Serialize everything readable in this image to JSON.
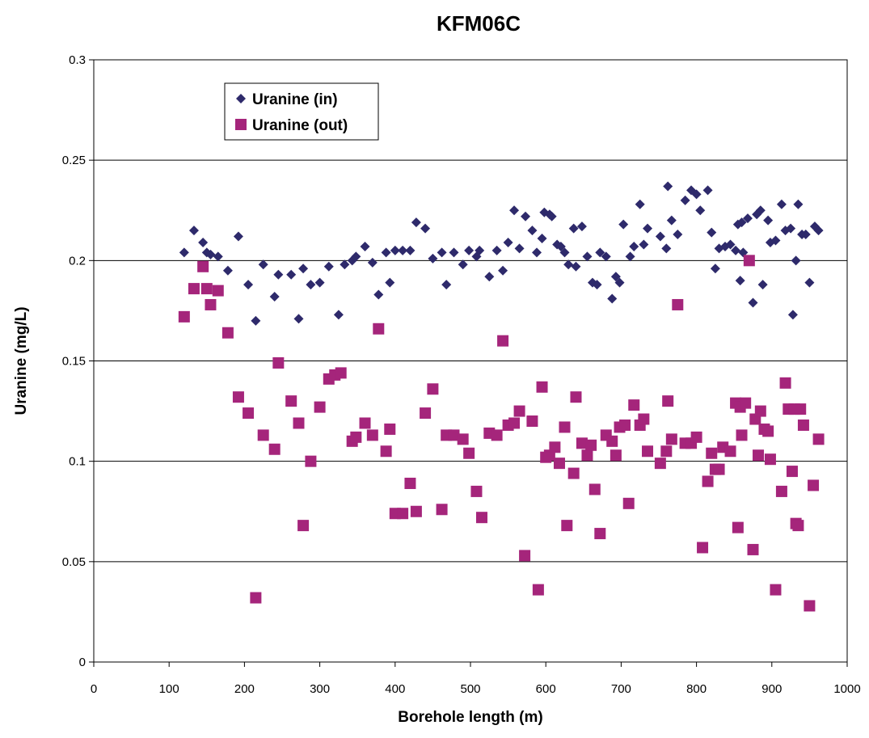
{
  "chart_data": {
    "type": "scatter",
    "title": "KFM06C",
    "xlabel": "Borehole length (m)",
    "ylabel": "Uranine (mg/L)",
    "xlim": [
      0,
      1000
    ],
    "ylim": [
      0,
      0.3
    ],
    "xticks": [
      0,
      100,
      200,
      300,
      400,
      500,
      600,
      700,
      800,
      900,
      1000
    ],
    "yticks": [
      0,
      0.05,
      0.1,
      0.15,
      0.2,
      0.25,
      0.3
    ],
    "grid": "horizontal",
    "legend_position": "top-left",
    "series": [
      {
        "name": "Uranine (in)",
        "marker": "diamond",
        "color": "#2e2a6b",
        "points": [
          [
            120,
            0.204
          ],
          [
            133,
            0.215
          ],
          [
            145,
            0.209
          ],
          [
            150,
            0.204
          ],
          [
            155,
            0.203
          ],
          [
            165,
            0.202
          ],
          [
            178,
            0.195
          ],
          [
            192,
            0.212
          ],
          [
            205,
            0.188
          ],
          [
            215,
            0.17
          ],
          [
            225,
            0.198
          ],
          [
            240,
            0.182
          ],
          [
            245,
            0.193
          ],
          [
            262,
            0.193
          ],
          [
            272,
            0.171
          ],
          [
            278,
            0.196
          ],
          [
            288,
            0.188
          ],
          [
            300,
            0.189
          ],
          [
            312,
            0.197
          ],
          [
            325,
            0.173
          ],
          [
            333,
            0.198
          ],
          [
            343,
            0.2
          ],
          [
            348,
            0.202
          ],
          [
            360,
            0.207
          ],
          [
            370,
            0.199
          ],
          [
            378,
            0.183
          ],
          [
            388,
            0.204
          ],
          [
            393,
            0.189
          ],
          [
            400,
            0.205
          ],
          [
            410,
            0.205
          ],
          [
            420,
            0.205
          ],
          [
            428,
            0.219
          ],
          [
            440,
            0.216
          ],
          [
            450,
            0.201
          ],
          [
            462,
            0.204
          ],
          [
            468,
            0.188
          ],
          [
            478,
            0.204
          ],
          [
            490,
            0.198
          ],
          [
            498,
            0.205
          ],
          [
            508,
            0.202
          ],
          [
            512,
            0.205
          ],
          [
            525,
            0.192
          ],
          [
            535,
            0.205
          ],
          [
            543,
            0.195
          ],
          [
            550,
            0.209
          ],
          [
            558,
            0.225
          ],
          [
            565,
            0.206
          ],
          [
            573,
            0.222
          ],
          [
            582,
            0.215
          ],
          [
            588,
            0.204
          ],
          [
            595,
            0.211
          ],
          [
            598,
            0.224
          ],
          [
            605,
            0.223
          ],
          [
            608,
            0.222
          ],
          [
            615,
            0.208
          ],
          [
            620,
            0.207
          ],
          [
            625,
            0.204
          ],
          [
            630,
            0.198
          ],
          [
            637,
            0.216
          ],
          [
            640,
            0.197
          ],
          [
            648,
            0.217
          ],
          [
            655,
            0.202
          ],
          [
            662,
            0.189
          ],
          [
            668,
            0.188
          ],
          [
            672,
            0.204
          ],
          [
            680,
            0.202
          ],
          [
            688,
            0.181
          ],
          [
            693,
            0.192
          ],
          [
            698,
            0.189
          ],
          [
            703,
            0.218
          ],
          [
            712,
            0.202
          ],
          [
            717,
            0.207
          ],
          [
            725,
            0.228
          ],
          [
            730,
            0.208
          ],
          [
            735,
            0.216
          ],
          [
            752,
            0.212
          ],
          [
            760,
            0.206
          ],
          [
            762,
            0.237
          ],
          [
            767,
            0.22
          ],
          [
            775,
            0.213
          ],
          [
            785,
            0.23
          ],
          [
            793,
            0.235
          ],
          [
            800,
            0.233
          ],
          [
            805,
            0.225
          ],
          [
            815,
            0.235
          ],
          [
            820,
            0.214
          ],
          [
            825,
            0.196
          ],
          [
            830,
            0.206
          ],
          [
            838,
            0.207
          ],
          [
            845,
            0.208
          ],
          [
            852,
            0.205
          ],
          [
            855,
            0.218
          ],
          [
            858,
            0.19
          ],
          [
            860,
            0.219
          ],
          [
            862,
            0.204
          ],
          [
            868,
            0.221
          ],
          [
            875,
            0.179
          ],
          [
            880,
            0.223
          ],
          [
            885,
            0.225
          ],
          [
            888,
            0.188
          ],
          [
            895,
            0.22
          ],
          [
            898,
            0.209
          ],
          [
            905,
            0.21
          ],
          [
            913,
            0.228
          ],
          [
            918,
            0.215
          ],
          [
            925,
            0.216
          ],
          [
            928,
            0.173
          ],
          [
            932,
            0.2
          ],
          [
            935,
            0.228
          ],
          [
            940,
            0.213
          ],
          [
            945,
            0.213
          ],
          [
            950,
            0.189
          ],
          [
            957,
            0.217
          ],
          [
            962,
            0.215
          ]
        ]
      },
      {
        "name": "Uranine (out)",
        "marker": "square",
        "color": "#a5257b",
        "points": [
          [
            120,
            0.172
          ],
          [
            133,
            0.186
          ],
          [
            145,
            0.197
          ],
          [
            150,
            0.186
          ],
          [
            155,
            0.178
          ],
          [
            165,
            0.185
          ],
          [
            178,
            0.164
          ],
          [
            192,
            0.132
          ],
          [
            205,
            0.124
          ],
          [
            215,
            0.032
          ],
          [
            225,
            0.113
          ],
          [
            240,
            0.106
          ],
          [
            245,
            0.149
          ],
          [
            262,
            0.13
          ],
          [
            272,
            0.119
          ],
          [
            278,
            0.068
          ],
          [
            288,
            0.1
          ],
          [
            300,
            0.127
          ],
          [
            312,
            0.141
          ],
          [
            320,
            0.143
          ],
          [
            328,
            0.144
          ],
          [
            343,
            0.11
          ],
          [
            348,
            0.112
          ],
          [
            360,
            0.119
          ],
          [
            370,
            0.113
          ],
          [
            378,
            0.166
          ],
          [
            388,
            0.105
          ],
          [
            393,
            0.116
          ],
          [
            400,
            0.074
          ],
          [
            410,
            0.074
          ],
          [
            420,
            0.089
          ],
          [
            428,
            0.075
          ],
          [
            440,
            0.124
          ],
          [
            450,
            0.136
          ],
          [
            462,
            0.076
          ],
          [
            468,
            0.113
          ],
          [
            478,
            0.113
          ],
          [
            490,
            0.111
          ],
          [
            498,
            0.104
          ],
          [
            508,
            0.085
          ],
          [
            515,
            0.072
          ],
          [
            525,
            0.114
          ],
          [
            535,
            0.113
          ],
          [
            543,
            0.16
          ],
          [
            550,
            0.118
          ],
          [
            558,
            0.119
          ],
          [
            565,
            0.125
          ],
          [
            572,
            0.053
          ],
          [
            582,
            0.12
          ],
          [
            590,
            0.036
          ],
          [
            595,
            0.137
          ],
          [
            600,
            0.102
          ],
          [
            605,
            0.103
          ],
          [
            612,
            0.107
          ],
          [
            618,
            0.099
          ],
          [
            625,
            0.117
          ],
          [
            628,
            0.068
          ],
          [
            637,
            0.094
          ],
          [
            640,
            0.132
          ],
          [
            648,
            0.109
          ],
          [
            655,
            0.103
          ],
          [
            660,
            0.108
          ],
          [
            665,
            0.086
          ],
          [
            672,
            0.064
          ],
          [
            680,
            0.113
          ],
          [
            688,
            0.11
          ],
          [
            693,
            0.103
          ],
          [
            698,
            0.117
          ],
          [
            705,
            0.118
          ],
          [
            710,
            0.079
          ],
          [
            717,
            0.128
          ],
          [
            725,
            0.118
          ],
          [
            730,
            0.121
          ],
          [
            735,
            0.105
          ],
          [
            752,
            0.099
          ],
          [
            760,
            0.105
          ],
          [
            762,
            0.13
          ],
          [
            767,
            0.111
          ],
          [
            775,
            0.178
          ],
          [
            785,
            0.109
          ],
          [
            793,
            0.109
          ],
          [
            800,
            0.112
          ],
          [
            808,
            0.057
          ],
          [
            815,
            0.09
          ],
          [
            820,
            0.104
          ],
          [
            825,
            0.096
          ],
          [
            830,
            0.096
          ],
          [
            835,
            0.107
          ],
          [
            845,
            0.105
          ],
          [
            852,
            0.129
          ],
          [
            855,
            0.067
          ],
          [
            858,
            0.127
          ],
          [
            860,
            0.113
          ],
          [
            865,
            0.129
          ],
          [
            870,
            0.2
          ],
          [
            875,
            0.056
          ],
          [
            878,
            0.121
          ],
          [
            882,
            0.103
          ],
          [
            885,
            0.125
          ],
          [
            890,
            0.116
          ],
          [
            895,
            0.115
          ],
          [
            898,
            0.101
          ],
          [
            905,
            0.036
          ],
          [
            913,
            0.085
          ],
          [
            918,
            0.139
          ],
          [
            922,
            0.126
          ],
          [
            927,
            0.095
          ],
          [
            930,
            0.126
          ],
          [
            932,
            0.069
          ],
          [
            935,
            0.068
          ],
          [
            938,
            0.126
          ],
          [
            942,
            0.118
          ],
          [
            950,
            0.028
          ],
          [
            955,
            0.088
          ],
          [
            962,
            0.111
          ]
        ]
      }
    ]
  }
}
